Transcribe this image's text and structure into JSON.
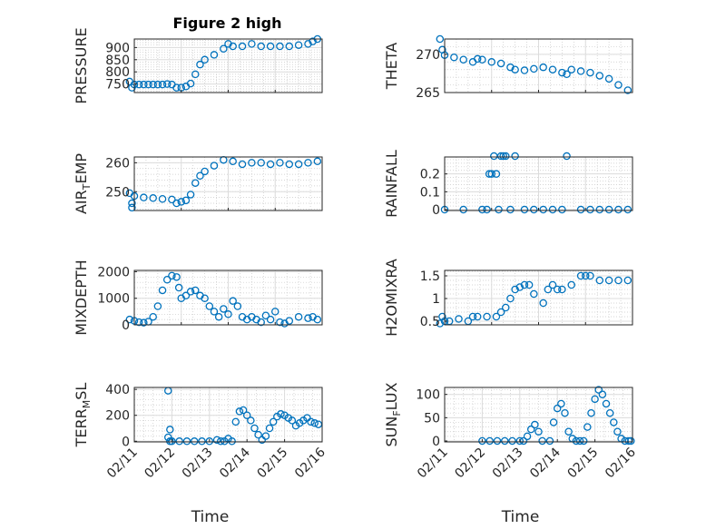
{
  "figure": {
    "title": "Figure 2 high",
    "marker_color": "#0072bd"
  },
  "chart_data": [
    {
      "id": "pressure",
      "type": "scatter",
      "title": "Figure 2 high",
      "ylabel": "PRESSURE",
      "ylim": [
        715,
        935
      ],
      "yticks": [
        750,
        800,
        850,
        900
      ],
      "grid": true,
      "xlim": [
        "02/12",
        "02/16"
      ],
      "xticks": [],
      "x": [
        "02/11 21:36",
        "02/11 22:48",
        "02/12 00:00",
        "02/12 02:24",
        "02/12 04:48",
        "02/12 07:12",
        "02/12 09:36",
        "02/12 12:00",
        "02/12 14:24",
        "02/12 16:48",
        "02/12 19:12",
        "02/12 21:36",
        "02/13 00:00",
        "02/13 02:24",
        "02/13 04:48",
        "02/13 07:12",
        "02/13 09:36",
        "02/13 12:00",
        "02/13 16:48",
        "02/13 21:36",
        "02/14 00:00",
        "02/14 02:24",
        "02/14 07:12",
        "02/14 12:00",
        "02/14 16:48",
        "02/14 21:36",
        "02/15 02:24",
        "02/15 07:12",
        "02/15 12:00",
        "02/15 16:48",
        "02/15 19:12",
        "02/15 21:36"
      ],
      "y": [
        760,
        735,
        748,
        748,
        748,
        748,
        748,
        748,
        748,
        750,
        748,
        735,
        735,
        740,
        752,
        790,
        830,
        850,
        870,
        895,
        915,
        905,
        905,
        915,
        905,
        905,
        905,
        905,
        910,
        915,
        925,
        935
      ]
    },
    {
      "id": "theta",
      "type": "scatter",
      "ylabel": "THETA",
      "ylim": [
        265,
        272
      ],
      "yticks": [
        265,
        270
      ],
      "grid": true,
      "xlim": [
        "02/12",
        "02/16"
      ],
      "xticks": [],
      "x": [
        "02/11 21:36",
        "02/11 22:48",
        "02/12 00:00",
        "02/12 04:48",
        "02/12 09:36",
        "02/12 14:24",
        "02/12 16:48",
        "02/12 19:12",
        "02/13 00:00",
        "02/13 04:48",
        "02/13 09:36",
        "02/13 12:00",
        "02/13 16:48",
        "02/13 21:36",
        "02/14 02:24",
        "02/14 07:12",
        "02/14 12:00",
        "02/14 14:24",
        "02/14 16:48",
        "02/14 21:36",
        "02/15 02:24",
        "02/15 07:12",
        "02/15 12:00",
        "02/15 16:48",
        "02/15 21:36"
      ],
      "y": [
        272,
        270.6,
        269.9,
        269.6,
        269.3,
        269,
        269.4,
        269.3,
        269,
        268.8,
        268.3,
        268,
        267.9,
        268.1,
        268.3,
        268,
        267.6,
        267.4,
        268,
        267.8,
        267.6,
        267.2,
        266.8,
        266,
        265.3
      ]
    },
    {
      "id": "air_temp",
      "type": "scatter",
      "ylabel": "AIR",
      "ylabel_sub": "T",
      "ylabel_tail": "EMP",
      "ylim": [
        243.5,
        262
      ],
      "yticks": [
        250,
        260
      ],
      "grid": true,
      "xlim": [
        "02/12",
        "02/16"
      ],
      "xticks": [],
      "x": [
        "02/11 21:36",
        "02/11 22:48",
        "02/11 22:48",
        "02/12 00:00",
        "02/12 04:48",
        "02/12 09:36",
        "02/12 14:24",
        "02/12 19:12",
        "02/12 21:36",
        "02/13 00:00",
        "02/13 02:24",
        "02/13 04:48",
        "02/13 07:12",
        "02/13 09:36",
        "02/13 12:00",
        "02/13 16:48",
        "02/13 21:36",
        "02/14 02:24",
        "02/14 07:12",
        "02/14 12:00",
        "02/14 16:48",
        "02/14 21:36",
        "02/15 02:24",
        "02/15 07:12",
        "02/15 12:00",
        "02/15 16:48",
        "02/15 21:36"
      ],
      "y": [
        249.5,
        246,
        244.5,
        248.5,
        248,
        247.8,
        247.5,
        247.3,
        246,
        246.5,
        247,
        249,
        253,
        255.5,
        257,
        259,
        261,
        260.5,
        259.5,
        260,
        260,
        259.5,
        260,
        259.5,
        259.5,
        260,
        260.5
      ]
    },
    {
      "id": "rainfall",
      "type": "scatter",
      "ylabel": "RAINFALL",
      "ylim": [
        -0.005,
        0.295
      ],
      "yticks": [
        0,
        0.1,
        0.2
      ],
      "grid": true,
      "xlim": [
        "02/12",
        "02/16"
      ],
      "xticks": [],
      "x": [
        "02/12 00:00",
        "02/12 09:36",
        "02/12 19:12",
        "02/12 21:36",
        "02/12 22:48",
        "02/13 00:00",
        "02/13 01:12",
        "02/13 02:24",
        "02/13 03:36",
        "02/13 04:48",
        "02/13 06:00",
        "02/13 07:12",
        "02/13 09:36",
        "02/13 12:00",
        "02/13 16:48",
        "02/13 21:36",
        "02/14 02:24",
        "02/14 07:12",
        "02/14 12:00",
        "02/14 14:24",
        "02/14 21:36",
        "02/15 02:24",
        "02/15 07:12",
        "02/15 12:00",
        "02/15 16:48",
        "02/15 21:36"
      ],
      "y": [
        0,
        0,
        0,
        0,
        0.2,
        0.2,
        0.3,
        0.2,
        0,
        0.3,
        0.3,
        0.3,
        0,
        0.3,
        0,
        0,
        0,
        0,
        0,
        0.3,
        0,
        0,
        0,
        0,
        0,
        0
      ]
    },
    {
      "id": "mixdepth",
      "type": "scatter",
      "ylabel": "MIXDEPTH",
      "ylim": [
        0,
        2050
      ],
      "yticks": [
        0,
        1000,
        2000
      ],
      "grid": true,
      "xlim": [
        "02/12",
        "02/16"
      ],
      "xticks": [],
      "x": [
        "02/11 21:36",
        "02/12 00:00",
        "02/12 02:24",
        "02/12 04:48",
        "02/12 07:12",
        "02/12 09:36",
        "02/12 12:00",
        "02/12 14:24",
        "02/12 16:48",
        "02/12 19:12",
        "02/12 21:36",
        "02/12 22:48",
        "02/13 00:00",
        "02/13 02:24",
        "02/13 04:48",
        "02/13 07:12",
        "02/13 09:36",
        "02/13 12:00",
        "02/13 14:24",
        "02/13 16:48",
        "02/13 19:12",
        "02/13 21:36",
        "02/14 00:00",
        "02/14 02:24",
        "02/14 04:48",
        "02/14 07:12",
        "02/14 09:36",
        "02/14 12:00",
        "02/14 14:24",
        "02/14 16:48",
        "02/14 19:12",
        "02/14 21:36",
        "02/15 00:00",
        "02/15 02:24",
        "02/15 04:48",
        "02/15 07:12",
        "02/15 12:00",
        "02/15 16:48",
        "02/15 19:12",
        "02/15 21:36"
      ],
      "y": [
        200,
        150,
        100,
        80,
        120,
        300,
        700,
        1300,
        1700,
        1850,
        1800,
        1400,
        1000,
        1100,
        1250,
        1300,
        1100,
        1000,
        700,
        500,
        300,
        600,
        400,
        900,
        700,
        300,
        200,
        300,
        200,
        100,
        350,
        200,
        500,
        100,
        50,
        150,
        300,
        250,
        300,
        200
      ]
    },
    {
      "id": "h2omixra",
      "type": "scatter",
      "ylabel": "H2OMIXRA",
      "ylim": [
        0.42,
        1.62
      ],
      "yticks": [
        0.5,
        1,
        1.5
      ],
      "grid": true,
      "xlim": [
        "02/12",
        "02/16"
      ],
      "xticks": [],
      "x": [
        "02/11 21:36",
        "02/11 22:48",
        "02/12 00:00",
        "02/12 02:24",
        "02/12 07:12",
        "02/12 12:00",
        "02/12 14:24",
        "02/12 16:48",
        "02/12 21:36",
        "02/13 02:24",
        "02/13 04:48",
        "02/13 07:12",
        "02/13 09:36",
        "02/13 12:00",
        "02/13 14:24",
        "02/13 16:48",
        "02/13 19:12",
        "02/13 21:36",
        "02/14 02:24",
        "02/14 04:48",
        "02/14 07:12",
        "02/14 09:36",
        "02/14 12:00",
        "02/14 16:48",
        "02/14 21:36",
        "02/15 00:00",
        "02/15 02:24",
        "02/15 07:12",
        "02/15 12:00",
        "02/15 16:48",
        "02/15 21:36"
      ],
      "y": [
        0.45,
        0.6,
        0.5,
        0.5,
        0.55,
        0.5,
        0.6,
        0.6,
        0.6,
        0.6,
        0.7,
        0.8,
        1,
        1.2,
        1.25,
        1.3,
        1.3,
        1.1,
        0.9,
        1.2,
        1.3,
        1.2,
        1.2,
        1.3,
        1.5,
        1.5,
        1.5,
        1.4,
        1.4,
        1.4,
        1.4
      ]
    },
    {
      "id": "terr_msl",
      "type": "scatter",
      "ylabel": "TERR",
      "ylabel_sub": "M",
      "ylabel_tail": "SL",
      "ylim": [
        -5,
        415
      ],
      "yticks": [
        0,
        200,
        400
      ],
      "grid": true,
      "xlim": [
        "02/11",
        "02/16"
      ],
      "xticks": [
        "02/11",
        "02/12",
        "02/13",
        "02/14",
        "02/15",
        "02/16"
      ],
      "xlabel": "Time",
      "x": [
        "02/11 21:36",
        "02/11 21:36",
        "02/11 22:48",
        "02/11 22:48",
        "02/12 00:00",
        "02/12 04:48",
        "02/12 09:36",
        "02/12 14:24",
        "02/12 19:12",
        "02/13 00:00",
        "02/13 04:48",
        "02/13 07:12",
        "02/13 09:36",
        "02/13 12:00",
        "02/13 14:24",
        "02/13 16:48",
        "02/13 19:12",
        "02/13 21:36",
        "02/14 00:00",
        "02/14 02:24",
        "02/14 04:48",
        "02/14 07:12",
        "02/14 09:36",
        "02/14 12:00",
        "02/14 14:24",
        "02/14 16:48",
        "02/14 19:12",
        "02/14 21:36",
        "02/15 00:00",
        "02/15 02:24",
        "02/15 04:48",
        "02/15 07:12",
        "02/15 09:36",
        "02/15 12:00",
        "02/15 14:24",
        "02/15 16:48",
        "02/15 19:12",
        "02/15 21:36"
      ],
      "y": [
        390,
        30,
        90,
        0,
        0,
        0,
        0,
        0,
        0,
        0,
        10,
        0,
        0,
        20,
        0,
        150,
        230,
        240,
        200,
        160,
        100,
        50,
        10,
        40,
        100,
        150,
        190,
        210,
        200,
        180,
        160,
        120,
        140,
        160,
        180,
        150,
        140,
        130
      ]
    },
    {
      "id": "sun_flux",
      "type": "scatter",
      "ylabel": "SUN",
      "ylabel_sub": "F",
      "ylabel_tail": "LUX",
      "ylim": [
        -2,
        115
      ],
      "yticks": [
        0,
        50,
        100
      ],
      "grid": true,
      "xlim": [
        "02/11",
        "02/16"
      ],
      "xticks": [
        "02/11",
        "02/12",
        "02/13",
        "02/14",
        "02/15",
        "02/16"
      ],
      "xlabel": "Time",
      "x": [
        "02/12 00:00",
        "02/12 04:48",
        "02/12 09:36",
        "02/12 14:24",
        "02/12 19:12",
        "02/13 00:00",
        "02/13 02:24",
        "02/13 04:48",
        "02/13 07:12",
        "02/13 09:36",
        "02/13 12:00",
        "02/13 14:24",
        "02/13 19:12",
        "02/13 21:36",
        "02/14 00:00",
        "02/14 02:24",
        "02/14 04:48",
        "02/14 07:12",
        "02/14 09:36",
        "02/14 12:00",
        "02/14 14:24",
        "02/14 16:48",
        "02/14 19:12",
        "02/14 21:36",
        "02/15 00:00",
        "02/15 02:24",
        "02/15 04:48",
        "02/15 07:12",
        "02/15 09:36",
        "02/15 12:00",
        "02/15 14:24",
        "02/15 16:48",
        "02/15 19:12",
        "02/15 21:36",
        "02/15 23:00"
      ],
      "y": [
        0,
        0,
        0,
        0,
        0,
        0,
        0,
        10,
        25,
        35,
        20,
        0,
        0,
        40,
        70,
        80,
        60,
        20,
        5,
        0,
        0,
        0,
        30,
        60,
        90,
        110,
        100,
        80,
        60,
        40,
        20,
        5,
        0,
        0,
        0
      ]
    }
  ]
}
